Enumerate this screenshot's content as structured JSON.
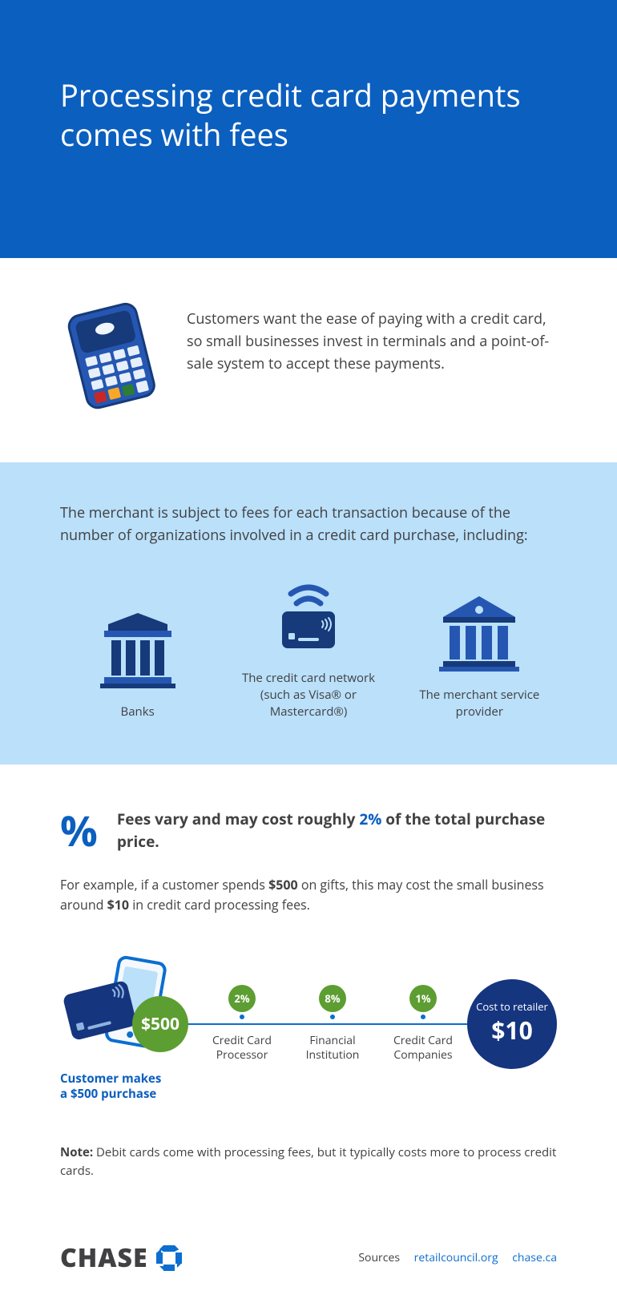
{
  "colors": {
    "hero_bg": "#0b5fbf",
    "light_bg": "#bae0fa",
    "accent_blue": "#0b6ed0",
    "icon_dark": "#163a7a",
    "icon_mid": "#2557b2",
    "green": "#5c9e31",
    "text": "#414042",
    "navy": "#15357f"
  },
  "header": {
    "title": "Processing credit card payments comes with fees"
  },
  "intro": {
    "text": "Customers want the ease of paying with a credit card, so small businesses invest in terminals and a point-of-sale system to accept these payments."
  },
  "orgs": {
    "lead": "The merchant is subject to fees for each transaction because of the number of organizations involved in a credit card purchase, including:",
    "items": [
      {
        "label": "Banks"
      },
      {
        "label": "The credit card network (such as Visa® or Mastercard®)"
      },
      {
        "label": "The merchant service provider"
      }
    ]
  },
  "fees": {
    "lead_pre": "Fees vary and may cost roughly ",
    "lead_accent": "2%",
    "lead_post": " of the total purchase price.",
    "example_html": "For example, if a customer spends <b>$500</b> on gifts, this may cost the small business around <b>$10</b> in credit card processing fees.",
    "diagram": {
      "purchase_amount": "$500",
      "purchase_caption_l1": "Customer makes",
      "purchase_caption_l2": "a $500 purchase",
      "steps": [
        {
          "pct": "2%",
          "label_l1": "Credit Card",
          "label_l2": "Processor"
        },
        {
          "pct": "8%",
          "label_l1": "Financial",
          "label_l2": "Institution"
        },
        {
          "pct": "1%",
          "label_l1": "Credit Card",
          "label_l2": "Companies"
        }
      ],
      "cost_label": "Cost to retailer",
      "cost_value": "$10"
    },
    "note_html": "<b>Note:</b> Debit cards come with processing fees, but it typically costs more to process credit cards."
  },
  "footer": {
    "brand": "CHASE",
    "sources_label": "Sources",
    "sources": [
      "retailcouncil.org",
      "chase.ca"
    ]
  }
}
